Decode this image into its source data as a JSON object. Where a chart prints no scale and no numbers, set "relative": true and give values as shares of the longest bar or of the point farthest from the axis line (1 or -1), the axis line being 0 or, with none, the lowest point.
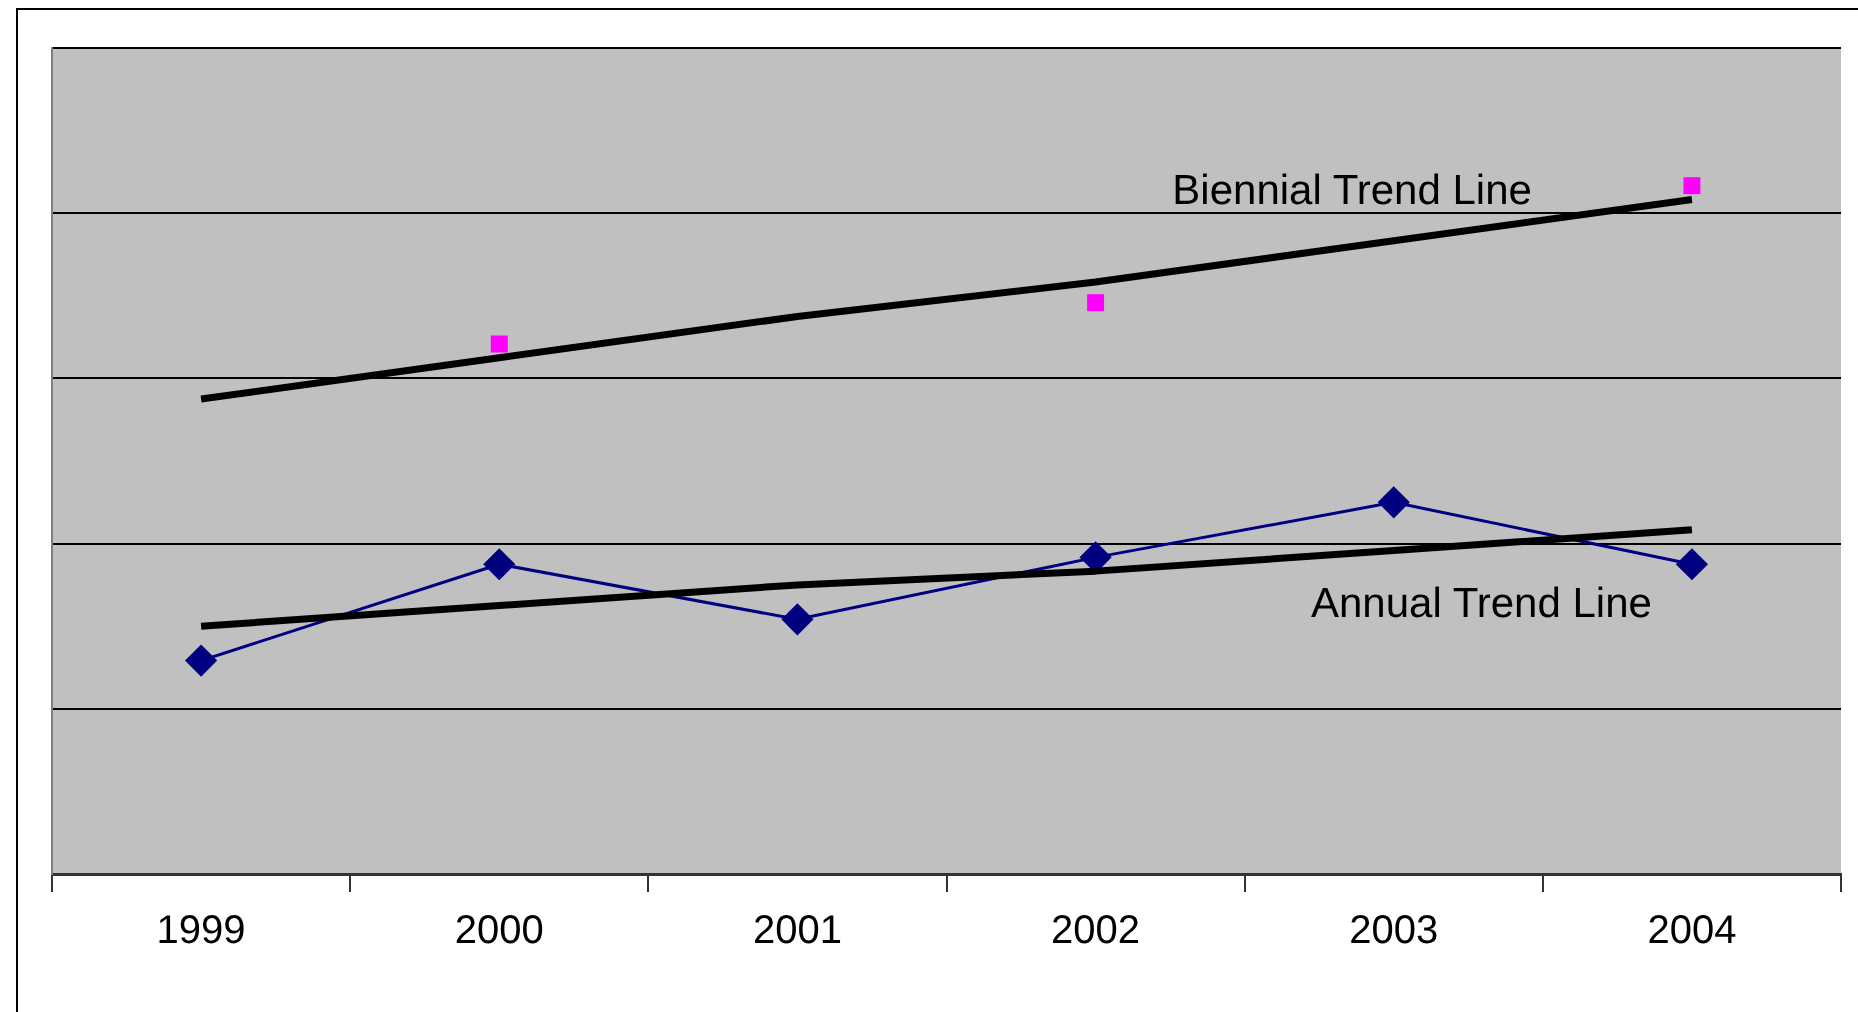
{
  "chart_data": {
    "type": "line",
    "categories": [
      "1999",
      "2000",
      "2001",
      "2002",
      "2003",
      "2004"
    ],
    "relative": true,
    "grid": "y",
    "legend": false,
    "series": [
      {
        "color": "#000080",
        "marker": "diamond",
        "values": [
          0.31,
          0.45,
          0.37,
          0.46,
          0.54,
          0.45
        ]
      },
      {
        "type": "scatter",
        "color": "#ff00ff",
        "marker": "square",
        "values": [
          null,
          0.77,
          null,
          0.83,
          null,
          1
        ]
      },
      {
        "name": "Biennial Trend Line",
        "color": "#000000",
        "marker": "none",
        "values": [
          0.69,
          0.75,
          0.81,
          0.86,
          0.92,
          0.98
        ]
      },
      {
        "name": "Annual Trend Line",
        "color": "#000000",
        "marker": "none",
        "values": [
          0.36,
          0.39,
          0.42,
          0.44,
          0.47,
          0.5
        ]
      }
    ]
  }
}
